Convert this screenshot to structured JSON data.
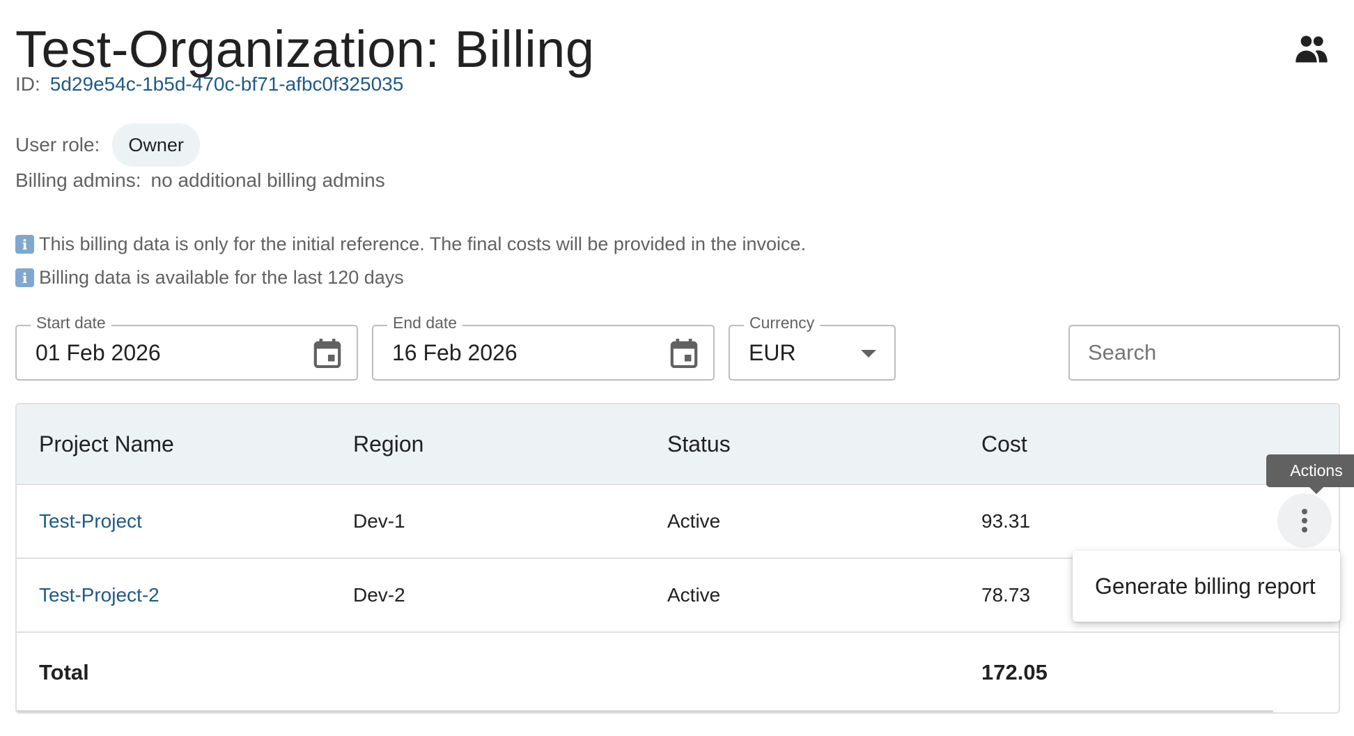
{
  "header": {
    "title": "Test-Organization: Billing",
    "people_icon": "people-icon"
  },
  "org": {
    "id_label": "ID:",
    "id_value": "5d29e54c-1b5d-470c-bf71-afbc0f325035",
    "role_label": "User role:",
    "role_value": "Owner",
    "admins_label": "Billing admins:",
    "admins_value": "no additional billing admins"
  },
  "notices": [
    {
      "icon": "info-icon",
      "text": "This billing data is only for the initial reference. The final costs will be provided in the invoice."
    },
    {
      "icon": "info-icon",
      "text": "Billing data is available for the last 120 days"
    }
  ],
  "filters": {
    "start_date": {
      "label": "Start date",
      "value": "01 Feb 2026",
      "icon": "calendar-icon"
    },
    "end_date": {
      "label": "End date",
      "value": "16 Feb 2026",
      "icon": "calendar-icon"
    },
    "currency": {
      "label": "Currency",
      "value": "EUR"
    },
    "search": {
      "placeholder": "Search"
    }
  },
  "table": {
    "columns": [
      "Project Name",
      "Region",
      "Status",
      "Cost"
    ],
    "rows": [
      {
        "name": "Test-Project",
        "region": "Dev-1",
        "status": "Active",
        "cost": "93.31"
      },
      {
        "name": "Test-Project-2",
        "region": "Dev-2",
        "status": "Active",
        "cost": "78.73"
      }
    ],
    "total_label": "Total",
    "total_cost": "172.05"
  },
  "actions": {
    "tooltip": "Actions",
    "menu_items": [
      "Generate billing report"
    ]
  },
  "colors": {
    "link": "#1f5a85",
    "header_bg": "#edf2f5",
    "tooltip_bg": "#616161"
  }
}
